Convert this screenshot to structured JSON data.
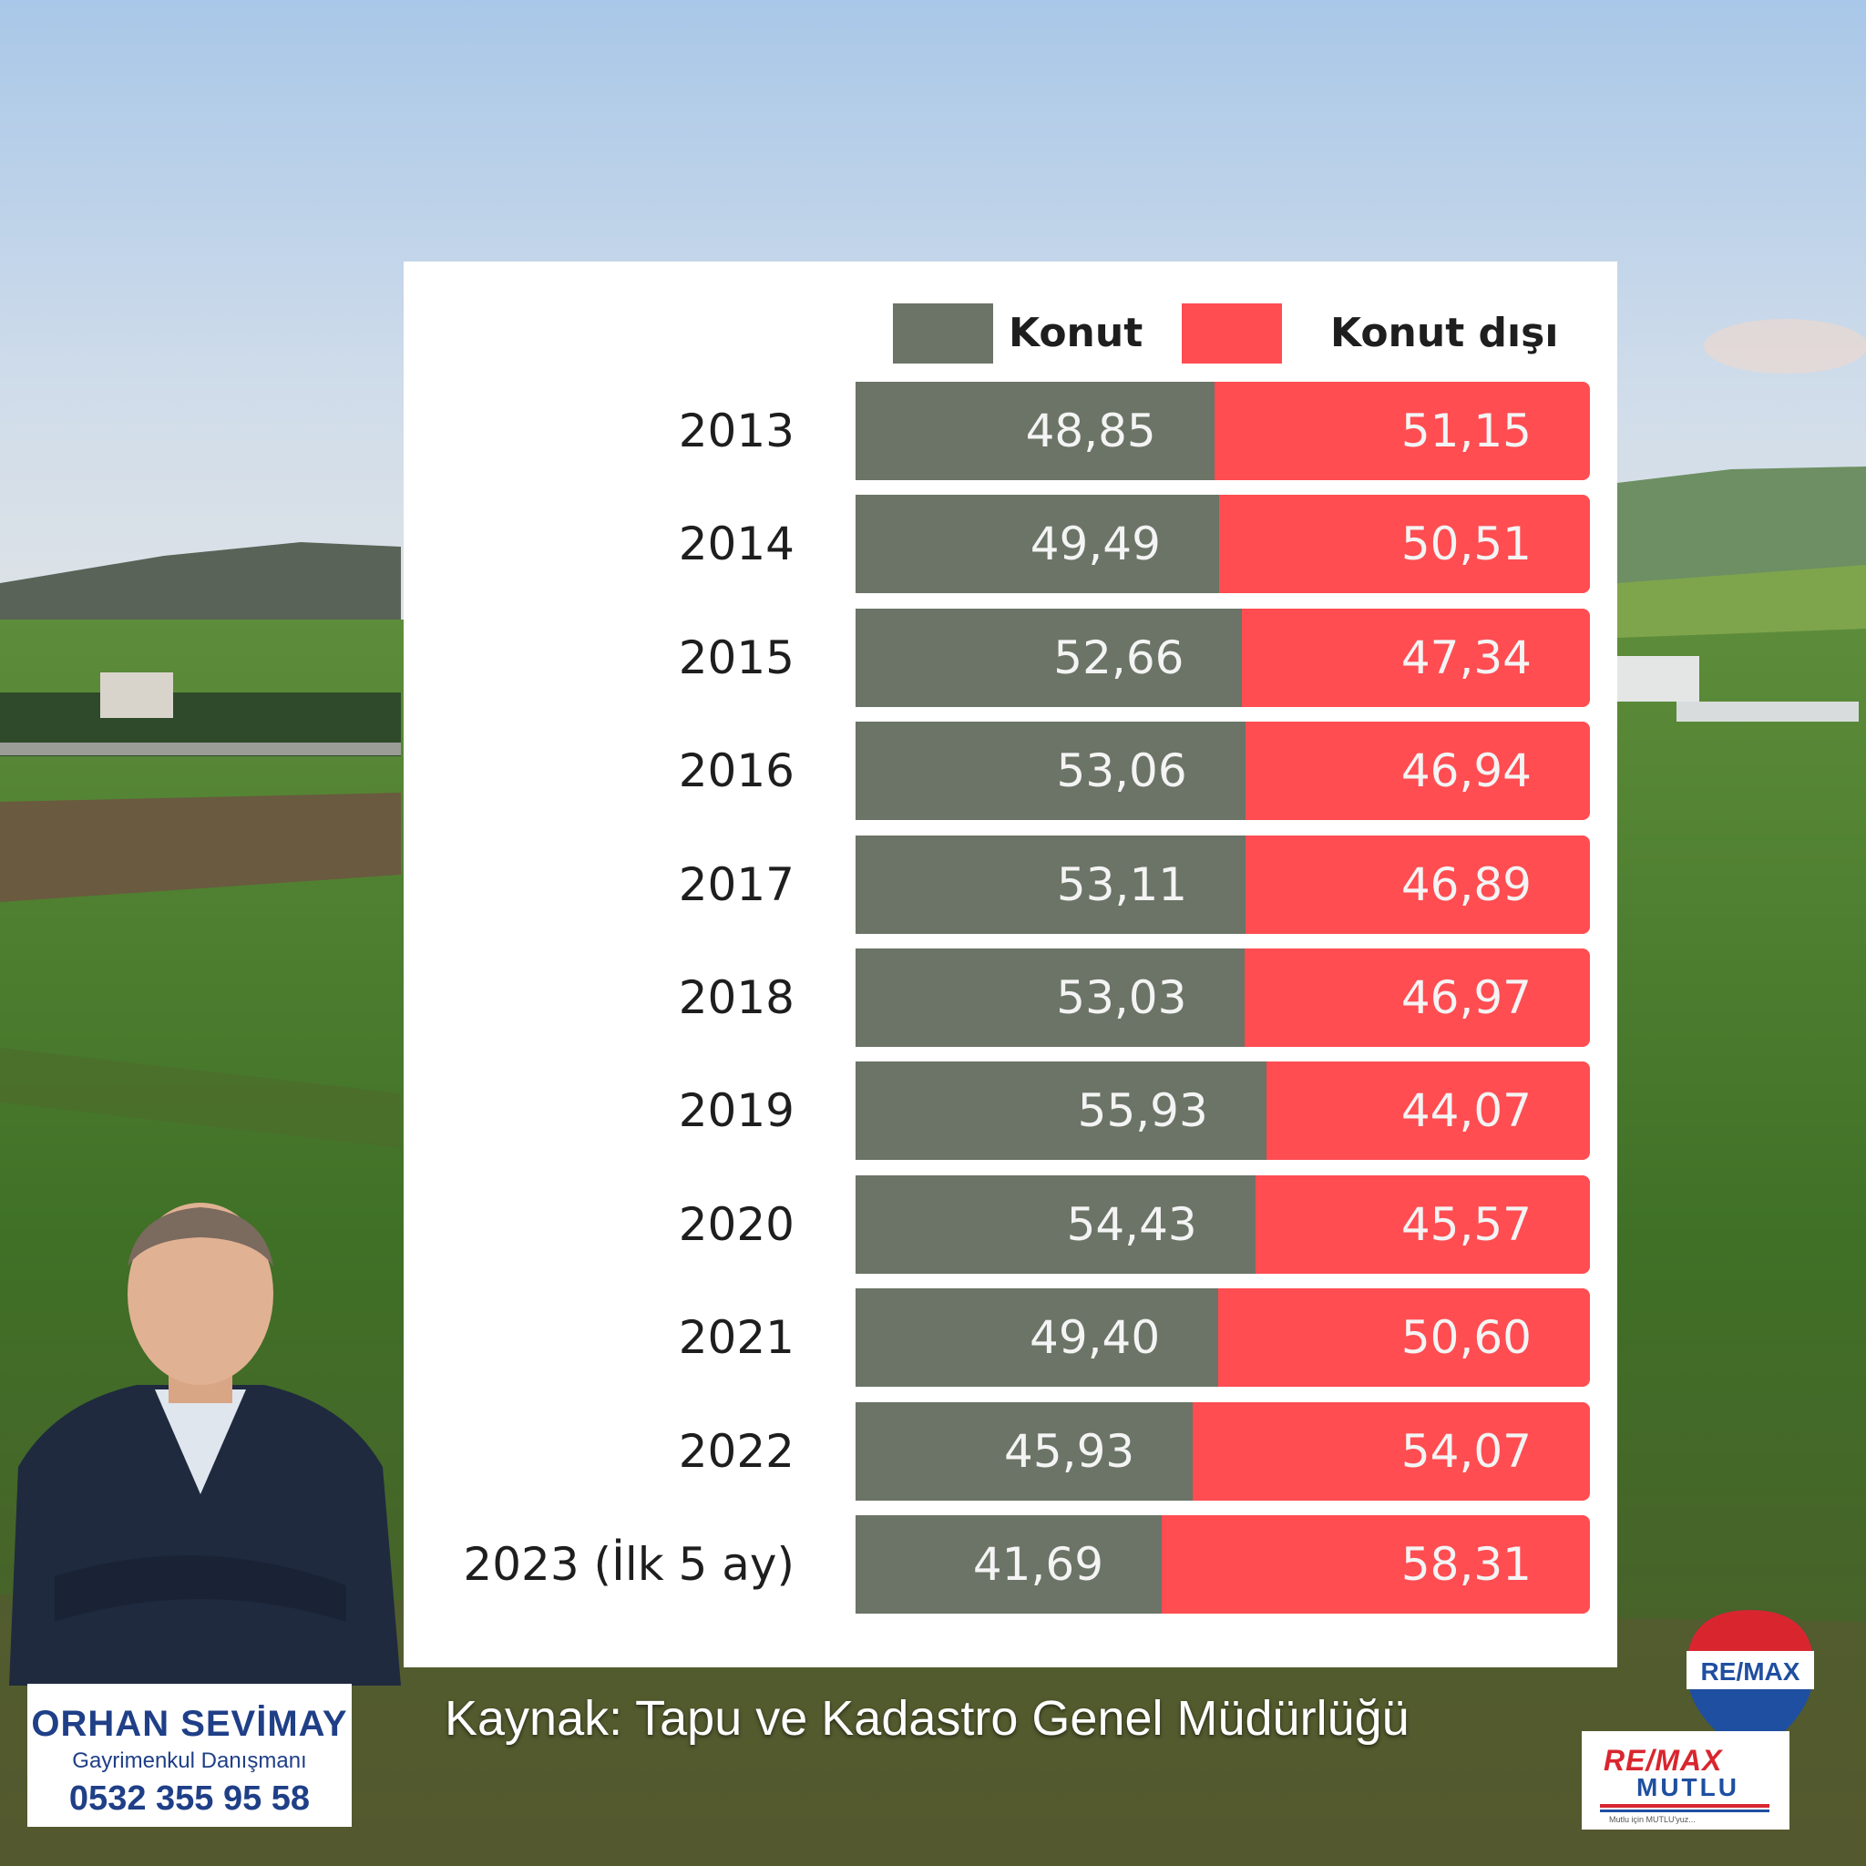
{
  "chart_data": {
    "type": "bar",
    "stacked": true,
    "orientation": "horizontal",
    "legend_position": "top",
    "categories": [
      "2013",
      "2014",
      "2015",
      "2016",
      "2017",
      "2018",
      "2019",
      "2020",
      "2021",
      "2022",
      "2023 (İlk 5 ay)"
    ],
    "series": [
      {
        "name": "Konut",
        "color": "#6b7466",
        "values": [
          48.85,
          49.49,
          52.66,
          53.06,
          53.11,
          53.03,
          55.93,
          54.43,
          49.4,
          45.93,
          41.69
        ],
        "labels": [
          "48,85",
          "49,49",
          "52,66",
          "53,06",
          "53,11",
          "53,03",
          "55,93",
          "54,43",
          "49,40",
          "45,93",
          "41,69"
        ]
      },
      {
        "name": "Konut dışı",
        "color": "#ff4d52",
        "values": [
          51.15,
          50.51,
          47.34,
          46.94,
          46.89,
          46.97,
          44.07,
          45.57,
          50.6,
          54.07,
          58.31
        ],
        "labels": [
          "51,15",
          "50,51",
          "47,34",
          "46,94",
          "46,89",
          "46,97",
          "44,07",
          "45,57",
          "50,60",
          "54,07",
          "58,31"
        ]
      }
    ],
    "xlim": [
      0,
      100
    ]
  },
  "source": "Kaynak: Tapu ve Kadastro Genel Müdürlüğü",
  "agent": {
    "name": "ORHAN SEVİMAY",
    "title": "Gayrimenkul Danışmanı",
    "phone": "0532 355 95 58"
  },
  "brand": {
    "balloon_text": "RE/MAX",
    "logo_text": "RE/MAX",
    "logo_subtext": "MUTLU",
    "tagline": "Mutlu için MUTLU'yuz...",
    "red": "#d9262e",
    "blue": "#1f4fa0"
  },
  "icons": {
    "agent_photo": "person-portrait-icon",
    "balloon": "hot-air-balloon-icon"
  }
}
